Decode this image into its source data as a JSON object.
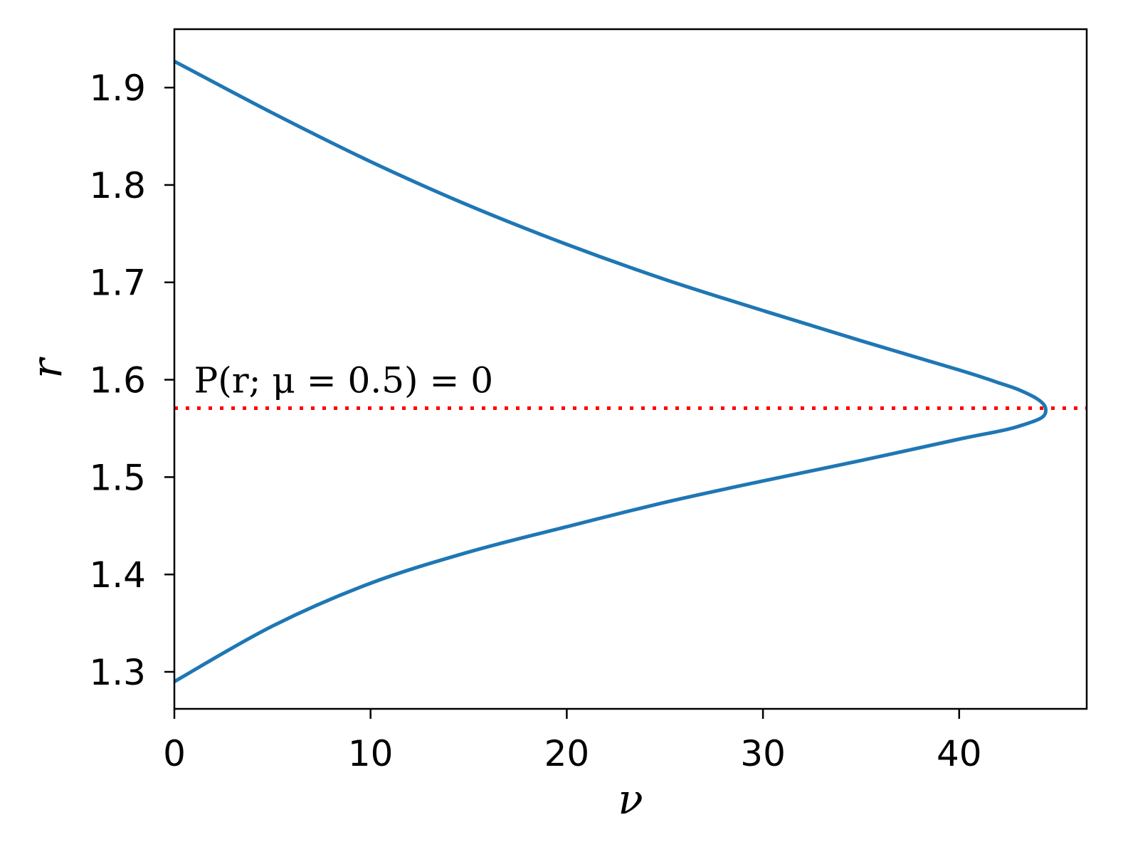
{
  "chart_data": {
    "type": "line",
    "xlabel": "ν",
    "ylabel": "r",
    "xlim": [
      0,
      46.5
    ],
    "ylim": [
      1.262,
      1.96
    ],
    "x_ticks": [
      0,
      10,
      20,
      30,
      40
    ],
    "x_tick_labels": [
      "0",
      "10",
      "20",
      "30",
      "40"
    ],
    "y_ticks": [
      1.3,
      1.4,
      1.5,
      1.6,
      1.7,
      1.8,
      1.9
    ],
    "y_tick_labels": [
      "1.3",
      "1.4",
      "1.5",
      "1.6",
      "1.7",
      "1.8",
      "1.9"
    ],
    "grid": false,
    "series": [
      {
        "color": "#1f77b4",
        "x": [
          0,
          5,
          10,
          15,
          20,
          25,
          30,
          35,
          40,
          42,
          43,
          44,
          44.4,
          44.2,
          43,
          42,
          40,
          35,
          30,
          25,
          20,
          15,
          10,
          5,
          0
        ],
        "y": [
          1.927,
          1.874,
          1.824,
          1.779,
          1.739,
          1.703,
          1.671,
          1.64,
          1.61,
          1.597,
          1.59,
          1.58,
          1.571,
          1.561,
          1.552,
          1.547,
          1.539,
          1.517,
          1.496,
          1.474,
          1.449,
          1.423,
          1.391,
          1.347,
          1.29
        ]
      }
    ],
    "reference_line": {
      "y": 1.5708,
      "color": "#ff0000",
      "style": "dotted"
    },
    "annotation": {
      "text": "P(r; μ = 0.5) = 0",
      "x": 1,
      "y": 1.6
    }
  }
}
